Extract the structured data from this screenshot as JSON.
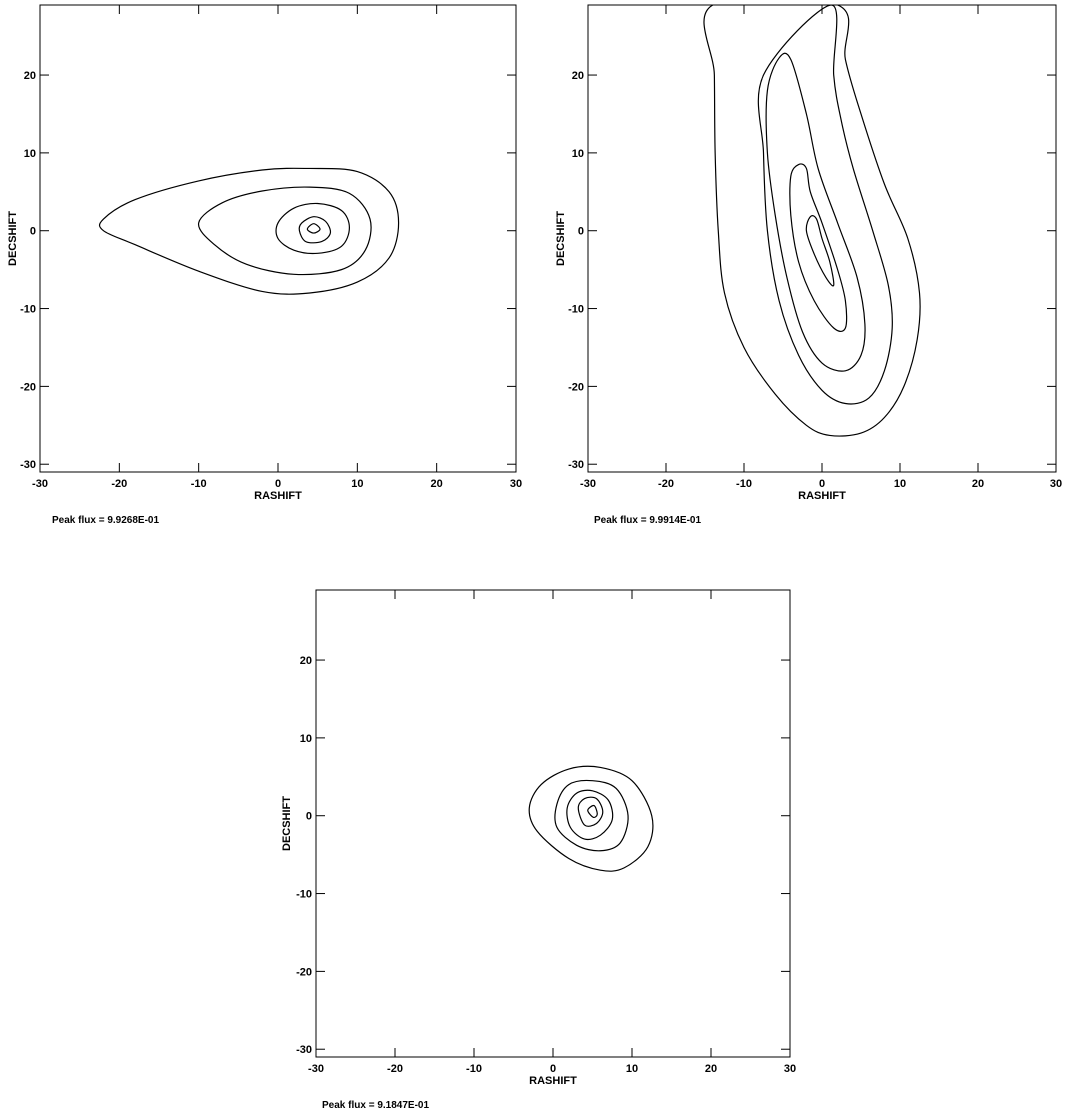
{
  "chart_data": [
    {
      "type": "contour",
      "xlabel": "RASHIFT",
      "ylabel": "DECSHIFT",
      "xlim": [
        -30,
        30
      ],
      "ylim": [
        -31,
        29
      ],
      "xticks": [
        -30,
        -20,
        -10,
        0,
        10,
        20,
        30
      ],
      "yticks": [
        -30,
        -20,
        -10,
        0,
        10,
        20
      ],
      "peak_label": "Peak flux =",
      "peak_value": "9.9268E-01",
      "contours": [
        [
          [
            -22,
            1.5
          ],
          [
            -18,
            4
          ],
          [
            -10,
            6.4
          ],
          [
            -2,
            7.8
          ],
          [
            4,
            8
          ],
          [
            10,
            7.6
          ],
          [
            14,
            5
          ],
          [
            15.2,
            1
          ],
          [
            14,
            -3.5
          ],
          [
            10,
            -6.6
          ],
          [
            4,
            -8
          ],
          [
            -2,
            -7.8
          ],
          [
            -10,
            -5.2
          ],
          [
            -18,
            -1.8
          ],
          [
            -22,
            0
          ]
        ],
        [
          [
            -10,
            1
          ],
          [
            -7,
            3.6
          ],
          [
            -2,
            5.1
          ],
          [
            4,
            5.6
          ],
          [
            9,
            4.8
          ],
          [
            11.6,
            1.5
          ],
          [
            11,
            -2.5
          ],
          [
            8,
            -5
          ],
          [
            2,
            -5.6
          ],
          [
            -4,
            -4.3
          ],
          [
            -8,
            -1.8
          ]
        ],
        [
          [
            0,
            1
          ],
          [
            2,
            2.9
          ],
          [
            5,
            3.5
          ],
          [
            8,
            2.6
          ],
          [
            9,
            0.4
          ],
          [
            8,
            -2
          ],
          [
            5,
            -2.9
          ],
          [
            2,
            -2.5
          ],
          [
            0,
            -1
          ]
        ],
        [
          [
            3,
            1
          ],
          [
            4.5,
            1.8
          ],
          [
            6,
            1.2
          ],
          [
            6.6,
            -0.3
          ],
          [
            5.5,
            -1.4
          ],
          [
            3.5,
            -1.4
          ],
          [
            2.7,
            0
          ]
        ],
        [
          [
            3.7,
            0.2
          ],
          [
            4.5,
            0.9
          ],
          [
            5.3,
            0.2
          ],
          [
            4.5,
            -0.3
          ]
        ]
      ]
    },
    {
      "type": "contour",
      "xlabel": "RASHIFT",
      "ylabel": "DECSHIFT",
      "xlim": [
        -30,
        30
      ],
      "ylim": [
        -31,
        29
      ],
      "xticks": [
        -30,
        -20,
        -10,
        0,
        10,
        20,
        30
      ],
      "yticks": [
        -30,
        -20,
        -10,
        0,
        10,
        20
      ],
      "peak_label": "Peak flux =",
      "peak_value": "9.9914E-01",
      "contours": [
        [
          [
            -14,
            29
          ],
          [
            -13.8,
            20
          ],
          [
            -13.7,
            10
          ],
          [
            -13.3,
            0
          ],
          [
            -12.5,
            -8
          ],
          [
            -10,
            -15
          ],
          [
            -6,
            -21
          ],
          [
            -2,
            -25
          ],
          [
            1,
            -26.3
          ],
          [
            5,
            -26
          ],
          [
            8,
            -24
          ],
          [
            10.5,
            -20
          ],
          [
            12.2,
            -14
          ],
          [
            12.5,
            -8
          ],
          [
            11,
            -1
          ],
          [
            8,
            6
          ],
          [
            5,
            15
          ],
          [
            3,
            22
          ],
          [
            2,
            29
          ]
        ],
        [
          [
            -7.5,
            20
          ],
          [
            -7.5,
            10
          ],
          [
            -7,
            0
          ],
          [
            -5.5,
            -9
          ],
          [
            -3,
            -16
          ],
          [
            0,
            -20.5
          ],
          [
            3,
            -22.2
          ],
          [
            6,
            -21.5
          ],
          [
            8,
            -18
          ],
          [
            9,
            -12.5
          ],
          [
            8.5,
            -7
          ],
          [
            6.5,
            0
          ],
          [
            4,
            8
          ],
          [
            2.5,
            14
          ],
          [
            1.5,
            20
          ],
          [
            1.2,
            29
          ]
        ],
        [
          [
            -5.5,
            22.2
          ],
          [
            -4,
            22
          ],
          [
            -2,
            15
          ],
          [
            -0.5,
            8
          ],
          [
            2,
            1
          ],
          [
            4.5,
            -6
          ],
          [
            5.5,
            -12
          ],
          [
            5,
            -16
          ],
          [
            3,
            -18
          ],
          [
            0,
            -17
          ],
          [
            -2.5,
            -13
          ],
          [
            -4.5,
            -6
          ],
          [
            -6,
            2
          ],
          [
            -7,
            10
          ],
          [
            -7,
            18
          ]
        ],
        [
          [
            -4,
            7
          ],
          [
            -3,
            8.5
          ],
          [
            -2,
            8
          ],
          [
            -1.5,
            5
          ],
          [
            0,
            1
          ],
          [
            2,
            -5
          ],
          [
            3,
            -9
          ],
          [
            3,
            -12.5
          ],
          [
            1.5,
            -12.5
          ],
          [
            -1,
            -9
          ],
          [
            -3,
            -4
          ],
          [
            -4,
            2
          ]
        ],
        [
          [
            -1.5,
            1.8
          ],
          [
            -0.7,
            1.5
          ],
          [
            0,
            -1
          ],
          [
            1,
            -4
          ],
          [
            1.5,
            -7
          ],
          [
            0.5,
            -6
          ],
          [
            -1,
            -3
          ],
          [
            -2,
            0
          ]
        ]
      ]
    },
    {
      "type": "contour",
      "xlabel": "RASHIFT",
      "ylabel": "DECSHIFT",
      "xlim": [
        -30,
        30
      ],
      "ylim": [
        -31,
        29
      ],
      "xticks": [
        -30,
        -20,
        -10,
        0,
        10,
        20,
        30
      ],
      "yticks": [
        -30,
        -20,
        -10,
        0,
        10,
        20
      ],
      "peak_label": "Peak flux =",
      "peak_value": "9.1847E-01",
      "contours": [
        [
          [
            -3,
            1
          ],
          [
            -1.5,
            4
          ],
          [
            2,
            6
          ],
          [
            6,
            6.2
          ],
          [
            10,
            4.5
          ],
          [
            12.5,
            0
          ],
          [
            12,
            -4
          ],
          [
            9,
            -6.7
          ],
          [
            6,
            -7
          ],
          [
            2,
            -5.5
          ],
          [
            -2,
            -2
          ]
        ],
        [
          [
            0.5,
            1.5
          ],
          [
            2,
            4
          ],
          [
            5,
            4.5
          ],
          [
            8,
            3.5
          ],
          [
            9.5,
            0
          ],
          [
            8.5,
            -3.5
          ],
          [
            6,
            -4.5
          ],
          [
            3,
            -3.8
          ],
          [
            0.5,
            -1.5
          ]
        ],
        [
          [
            1.8,
            1
          ],
          [
            3,
            2.9
          ],
          [
            5,
            3.2
          ],
          [
            7,
            2
          ],
          [
            7.5,
            -0.5
          ],
          [
            6,
            -2.5
          ],
          [
            4,
            -3
          ],
          [
            2.2,
            -1.5
          ]
        ],
        [
          [
            3.2,
            1
          ],
          [
            4,
            2.2
          ],
          [
            5.5,
            2.2
          ],
          [
            6.3,
            0.5
          ],
          [
            5.5,
            -1
          ],
          [
            4,
            -1.2
          ]
        ],
        [
          [
            4.4,
            0.7
          ],
          [
            5.2,
            1.3
          ],
          [
            5.6,
            0.2
          ],
          [
            5.1,
            -0.2
          ]
        ]
      ]
    }
  ]
}
